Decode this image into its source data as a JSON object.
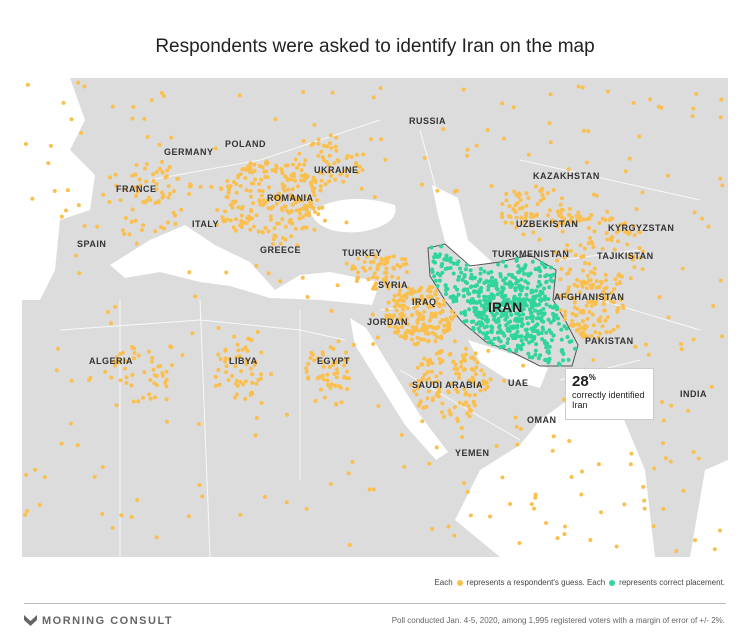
{
  "title": "Respondents were asked to identify Iran on the map",
  "countries": [
    "RUSSIA",
    "POLAND",
    "GERMANY",
    "UKRAINE",
    "KAZAKHSTAN",
    "FRANCE",
    "ROMANIA",
    "UZBEKISTAN",
    "KYRGYZSTAN",
    "SPAIN",
    "ITALY",
    "GREECE",
    "TURKEY",
    "TURKMENISTAN",
    "TAJIKISTAN",
    "SYRIA",
    "IRAN",
    "AFGHANISTAN",
    "IRAQ",
    "JORDAN",
    "ALGERIA",
    "LIBYA",
    "EGYPT",
    "PAKISTAN",
    "UAE",
    "SAUDI ARABIA",
    "INDIA",
    "OMAN",
    "YEMEN"
  ],
  "callout": {
    "value": "28",
    "unit": "%",
    "text": "correctly identified Iran"
  },
  "legend": {
    "each1": "Each",
    "guess": "represents a respondent's guess. Each",
    "correct": "represents correct placement."
  },
  "colors": {
    "guess": "#fbbf4e",
    "correct": "#2fd59a",
    "land": "#dcdcdc",
    "water": "#ffffff"
  },
  "footer": {
    "brand": "MORNING CONSULT",
    "note": "Poll conducted Jan. 4-5, 2020, among 1,995 registered voters with a margin of error of +/- 2%."
  }
}
